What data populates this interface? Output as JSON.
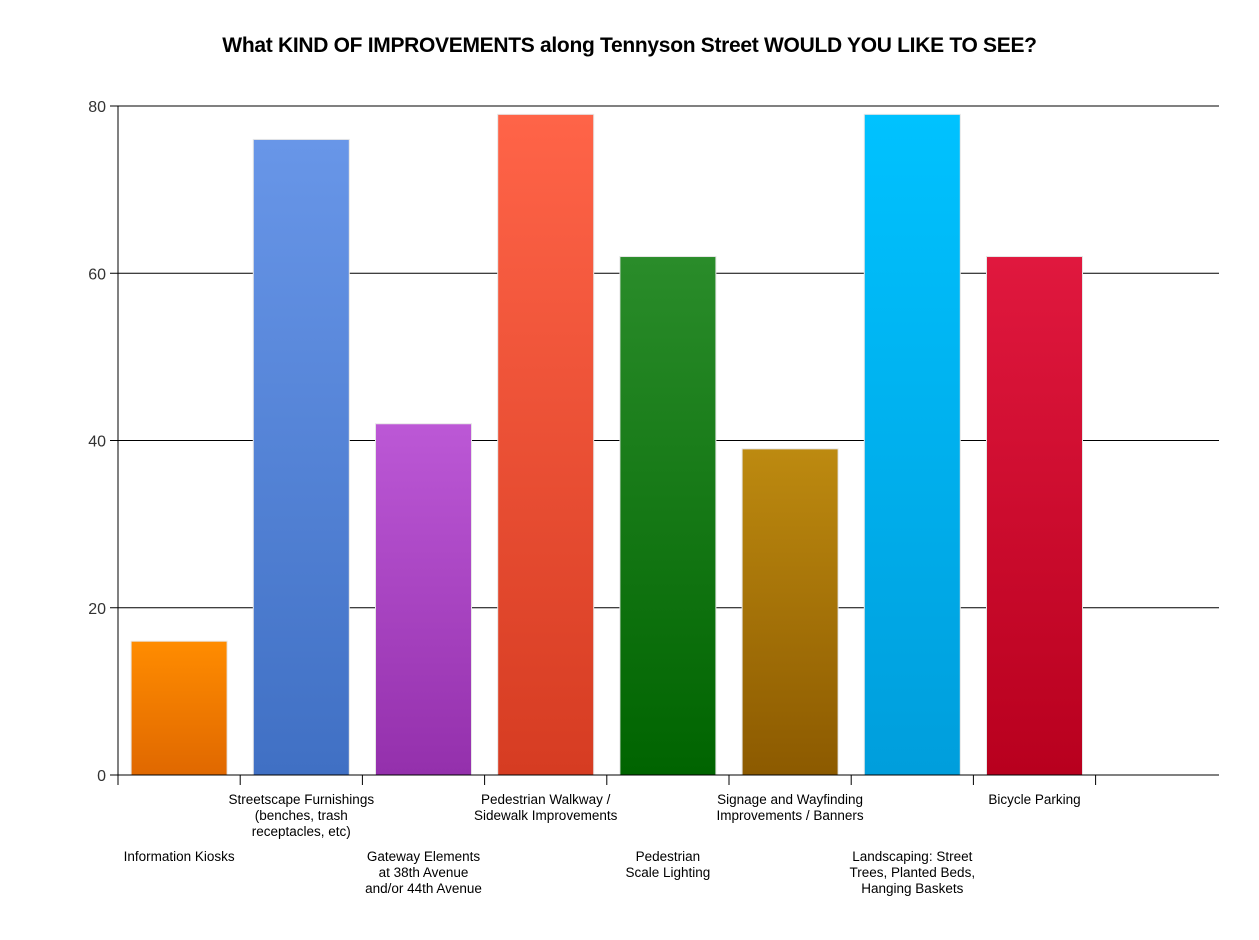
{
  "chart_data": {
    "type": "bar",
    "title": "What KIND OF IMPROVEMENTS along Tennyson Street WOULD YOU LIKE TO SEE?",
    "xlabel": "",
    "ylabel": "",
    "ylim": [
      0,
      80
    ],
    "yticks": [
      0,
      20,
      40,
      60,
      80
    ],
    "grid": true,
    "categories": [
      "Information Kiosks",
      "Streetscape Furnishings (benches, trash receptacles, etc)",
      "Gateway Elements at 38th Avenue and/or 44th Avenue",
      "Pedestrian Walkway / Sidewalk Improvements",
      "Pedestrian Scale Lighting",
      "Signage and Wayfinding Improvements / Banners",
      "Landscaping:  Street Trees, Planted Beds, Hanging Baskets",
      "Bicycle Parking"
    ],
    "category_label_lines": [
      [
        "Information Kiosks"
      ],
      [
        "Streetscape Furnishings",
        "(benches, trash",
        "receptacles, etc)"
      ],
      [
        "Gateway Elements",
        "at 38th Avenue",
        "and/or 44th Avenue"
      ],
      [
        "Pedestrian Walkway /",
        "Sidewalk Improvements"
      ],
      [
        "Pedestrian",
        "Scale Lighting"
      ],
      [
        "Signage and Wayfinding",
        "Improvements / Banners"
      ],
      [
        "Landscaping:  Street",
        "Trees, Planted Beds,",
        "Hanging Baskets"
      ],
      [
        "Bicycle Parking"
      ]
    ],
    "values": [
      16,
      76,
      42,
      79,
      62,
      39,
      79,
      62
    ],
    "colors": [
      [
        "#ff8c00",
        "#e06800"
      ],
      [
        "#6896e8",
        "#4070c4"
      ],
      [
        "#bc58d6",
        "#9430ac"
      ],
      [
        "#ff6448",
        "#d63c22"
      ],
      [
        "#2a8c2a",
        "#006400"
      ],
      [
        "#bd8a10",
        "#8c5a00"
      ],
      [
        "#00c2ff",
        "#009edc"
      ],
      [
        "#e0183e",
        "#b8001e"
      ]
    ]
  }
}
